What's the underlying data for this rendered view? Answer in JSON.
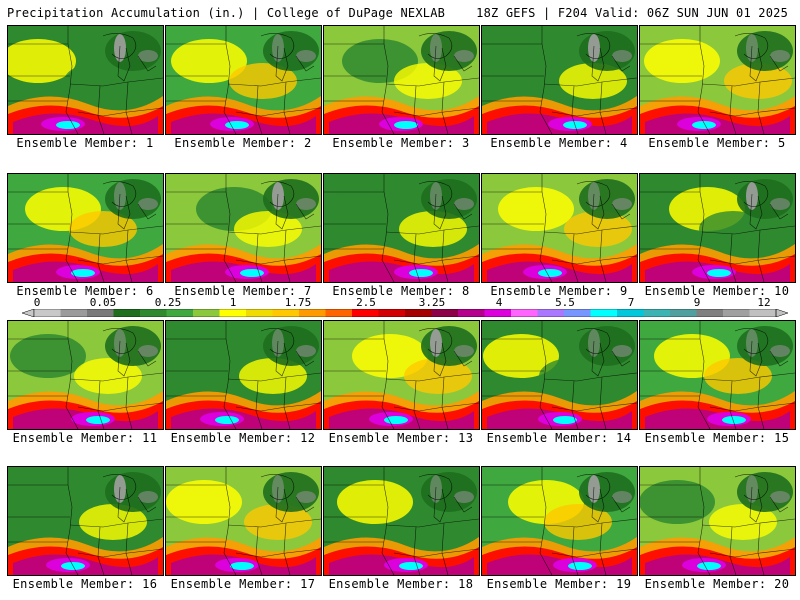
{
  "header": {
    "title": "Precipitation Accumulation (in.) | College of DuPage NEXLAB",
    "run_info": "18Z GEFS | F204 Valid: 06Z SUN JUN 01 2025"
  },
  "members": [
    "Ensemble Member: 1",
    "Ensemble Member: 2",
    "Ensemble Member: 3",
    "Ensemble Member: 4",
    "Ensemble Member: 5",
    "Ensemble Member: 6",
    "Ensemble Member: 7",
    "Ensemble Member: 8",
    "Ensemble Member: 9",
    "Ensemble Member: 10",
    "Ensemble Member: 11",
    "Ensemble Member: 12",
    "Ensemble Member: 13",
    "Ensemble Member: 14",
    "Ensemble Member: 15",
    "Ensemble Member: 16",
    "Ensemble Member: 17",
    "Ensemble Member: 18",
    "Ensemble Member: 19",
    "Ensemble Member: 20"
  ],
  "legend": {
    "tick_labels": [
      "0",
      "0.05",
      "0.25",
      "1",
      "1.75",
      "2.5",
      "3.25",
      "4",
      "5.5",
      "7",
      "9",
      "12"
    ],
    "colors": [
      "#c8c8c8",
      "#9b9b9b",
      "#7a7a7a",
      "#1e6e1e",
      "#2f8a2f",
      "#3fa83f",
      "#8cc83c",
      "#ffff00",
      "#f0dc00",
      "#ffc800",
      "#ff9b00",
      "#ff6400",
      "#ff0000",
      "#d20000",
      "#a50000",
      "#8b0046",
      "#b4008c",
      "#dc00dc",
      "#ff64ff",
      "#aa78ff",
      "#7896ff",
      "#00ffff",
      "#00c8dc",
      "#3cb4b4",
      "#50a0a0",
      "#808080",
      "#a0a0a0",
      "#c0c0c0"
    ]
  }
}
